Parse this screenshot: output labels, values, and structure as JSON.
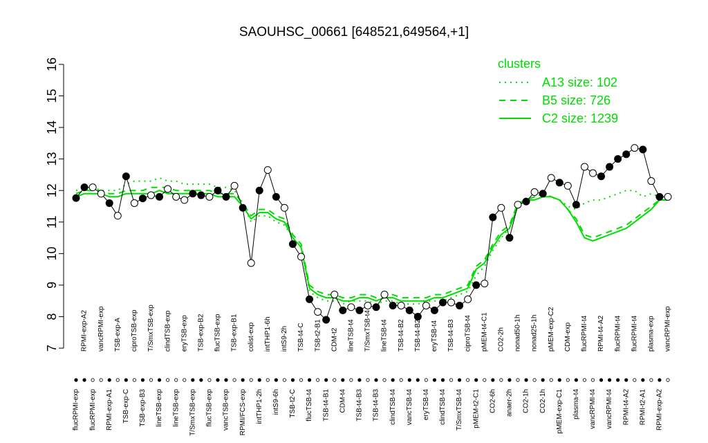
{
  "chart_data": {
    "type": "line",
    "title": "SAOUHSC_00661 [648521,649564,+1]",
    "categories": [
      "flucRPMI-exp",
      "RPMI-exp-A2",
      "flucRPMI-exp",
      "vancRPMI-exp",
      "RPMI-exp-A1",
      "TSB-exp-A",
      "TSB-exp-C",
      "ciproTSB-exp",
      "TSB-exp-B3",
      "T/SmxTSB-exp",
      "lineTSB-exp",
      "clindTSB-exp",
      "lineTSB-exp",
      "eryTSB-exp",
      "T/SmxTSB-exp",
      "TSB-exp-B2",
      "flucTSB-exp",
      "flucTSB-exp",
      "vancTSB-exp",
      "TSB-exp-B1",
      "RPMI/FCS-exp",
      "colist-exp",
      "intTHP1-2h",
      "intTHP1-6h",
      "intS9-6h",
      "intS9-2h",
      "TSB-t2-C",
      "TSB-t4-C",
      "flucTSB-t4",
      "TSB-t2-B1",
      "TSB-t4-B1",
      "CDM-t2",
      "CDM-t4",
      "lineTSB-t4",
      "TSB-t4-B3",
      "T/SmxTSB-t4",
      "TSB-t4-B3",
      "lineTSB-t4",
      "clindTSB-t4",
      "TSB-t4-B2",
      "vancTSB-t4",
      "TSB-t4-B2",
      "eryTSB-t4",
      "eryTSB-t4",
      "clindTSB-t4",
      "TSB-t4-B3",
      "T/SmxTSB-t4",
      "ciproTSB-t4",
      "pMEM-t2-C1",
      "pMEM-t4-C1",
      "CO2-6h",
      "CO2-2h",
      "anaer-2h",
      "nonad50-1h",
      "CO2-1h",
      "nonad25-1h",
      "CO2-1h",
      "pMEM-exp-C2",
      "pMEM-exp-C1",
      "CDM-exp",
      "plasma-t4",
      "flucRPMI-t4",
      "vancRPMI-t4",
      "RPMI-t4-A2",
      "vancRPMI-t4",
      "flucRPMI-t4",
      "RPMI-t4-A2",
      "flucRPMI-t4",
      "RPMI-t2-A1",
      "plasma-exp",
      "RPMI-exp-A2",
      "vancRPMI-exp"
    ],
    "values": [
      11.76,
      12.1,
      12.1,
      11.9,
      11.6,
      11.2,
      12.45,
      11.6,
      11.75,
      11.85,
      11.8,
      12.05,
      11.8,
      11.7,
      11.9,
      11.85,
      11.8,
      12.0,
      11.8,
      12.15,
      11.45,
      9.7,
      12.0,
      12.65,
      11.8,
      11.45,
      10.3,
      9.9,
      8.55,
      8.15,
      7.9,
      8.7,
      8.2,
      8.3,
      8.2,
      8.35,
      8.3,
      8.7,
      8.35,
      8.35,
      8.2,
      8.0,
      8.35,
      8.2,
      8.45,
      8.45,
      8.35,
      8.55,
      9.0,
      9.05,
      11.15,
      11.45,
      10.5,
      11.55,
      11.65,
      11.95,
      11.9,
      12.4,
      12.25,
      12.15,
      11.55,
      12.75,
      12.55,
      12.45,
      12.75,
      13.0,
      13.15,
      13.35,
      13.3,
      12.3,
      11.8,
      11.8
    ],
    "marker_colors": [
      "#000000",
      "#000000",
      "#ffffff",
      "#ffffff",
      "#000000",
      "#ffffff",
      "#000000",
      "#ffffff",
      "#000000",
      "#ffffff",
      "#000000",
      "#ffffff",
      "#ffffff",
      "#ffffff",
      "#000000",
      "#000000",
      "#ffffff",
      "#000000",
      "#000000",
      "#ffffff",
      "#000000",
      "#ffffff",
      "#000000",
      "#ffffff",
      "#000000",
      "#ffffff",
      "#000000",
      "#ffffff",
      "#000000",
      "#ffffff",
      "#000000",
      "#ffffff",
      "#000000",
      "#ffffff",
      "#000000",
      "#ffffff",
      "#000000",
      "#ffffff",
      "#000000",
      "#ffffff",
      "#000000",
      "#000000",
      "#ffffff",
      "#000000",
      "#000000",
      "#ffffff",
      "#000000",
      "#ffffff",
      "#000000",
      "#ffffff",
      "#000000",
      "#ffffff",
      "#000000",
      "#ffffff",
      "#000000",
      "#ffffff",
      "#000000",
      "#ffffff",
      "#000000",
      "#ffffff",
      "#000000",
      "#ffffff",
      "#ffffff",
      "#000000",
      "#000000",
      "#000000",
      "#000000",
      "#ffffff",
      "#000000",
      "#ffffff",
      "#000000",
      "#ffffff"
    ],
    "line_color": "#000000",
    "ylim": [
      7,
      16
    ],
    "yticks": [
      7,
      8,
      9,
      10,
      11,
      12,
      13,
      14,
      15,
      16
    ],
    "legend_title": "clusters",
    "legend_position": "top-right",
    "series": [
      {
        "name": "A13 size: 102",
        "color": "#00dd00",
        "style": "dotted",
        "values": [
          12.0,
          12.1,
          12.1,
          12.0,
          12.0,
          12.0,
          12.2,
          12.3,
          12.3,
          12.3,
          12.4,
          12.3,
          12.3,
          12.2,
          12.2,
          12.2,
          12.2,
          12.1,
          12.1,
          12.0,
          11.6,
          11.0,
          11.2,
          11.2,
          11.0,
          10.9,
          10.5,
          10.2,
          8.8,
          8.6,
          8.5,
          8.5,
          8.4,
          8.5,
          8.5,
          8.5,
          8.4,
          8.5,
          8.5,
          8.4,
          8.4,
          8.4,
          8.5,
          8.5,
          8.5,
          8.6,
          8.7,
          8.8,
          9.3,
          9.6,
          10.1,
          10.5,
          10.8,
          11.6,
          11.7,
          11.8,
          11.9,
          11.8,
          11.7,
          11.5,
          11.4,
          11.6,
          11.7,
          11.7,
          11.8,
          11.9,
          12.0,
          12.0,
          11.8,
          11.9,
          11.8,
          11.8
        ]
      },
      {
        "name": "B5 size: 726",
        "color": "#00dd00",
        "style": "dashed",
        "values": [
          11.9,
          12.0,
          12.0,
          12.0,
          11.9,
          11.9,
          12.0,
          12.0,
          12.0,
          12.1,
          12.1,
          12.1,
          12.0,
          12.0,
          12.0,
          12.0,
          12.0,
          11.9,
          11.9,
          11.9,
          11.6,
          11.2,
          11.4,
          11.4,
          11.2,
          11.1,
          10.6,
          10.3,
          9.0,
          8.8,
          8.7,
          8.7,
          8.6,
          8.6,
          8.7,
          8.7,
          8.6,
          8.7,
          8.7,
          8.6,
          8.6,
          8.6,
          8.6,
          8.7,
          8.7,
          8.8,
          8.9,
          9.0,
          9.6,
          9.8,
          10.3,
          10.7,
          10.9,
          11.6,
          11.7,
          11.8,
          11.9,
          11.8,
          11.7,
          11.4,
          11.1,
          10.6,
          10.5,
          10.6,
          10.7,
          10.8,
          10.9,
          11.1,
          11.3,
          11.5,
          11.7,
          11.7
        ]
      },
      {
        "name": "C2 size: 1239",
        "color": "#00dd00",
        "style": "solid",
        "values": [
          11.8,
          11.9,
          11.9,
          11.9,
          11.8,
          11.8,
          11.9,
          11.9,
          11.9,
          11.9,
          12.0,
          11.9,
          11.9,
          11.9,
          11.9,
          11.9,
          11.9,
          11.8,
          11.8,
          11.8,
          11.5,
          11.1,
          11.3,
          11.3,
          11.1,
          11.0,
          10.5,
          10.2,
          8.9,
          8.7,
          8.6,
          8.6,
          8.5,
          8.5,
          8.6,
          8.6,
          8.5,
          8.6,
          8.6,
          8.5,
          8.5,
          8.5,
          8.5,
          8.6,
          8.6,
          8.7,
          8.8,
          8.9,
          9.5,
          9.7,
          10.2,
          10.6,
          10.8,
          11.5,
          11.7,
          11.7,
          11.8,
          11.8,
          11.7,
          11.4,
          11.0,
          10.5,
          10.4,
          10.5,
          10.6,
          10.7,
          10.8,
          11.0,
          11.2,
          11.4,
          11.7,
          11.7
        ]
      }
    ]
  }
}
